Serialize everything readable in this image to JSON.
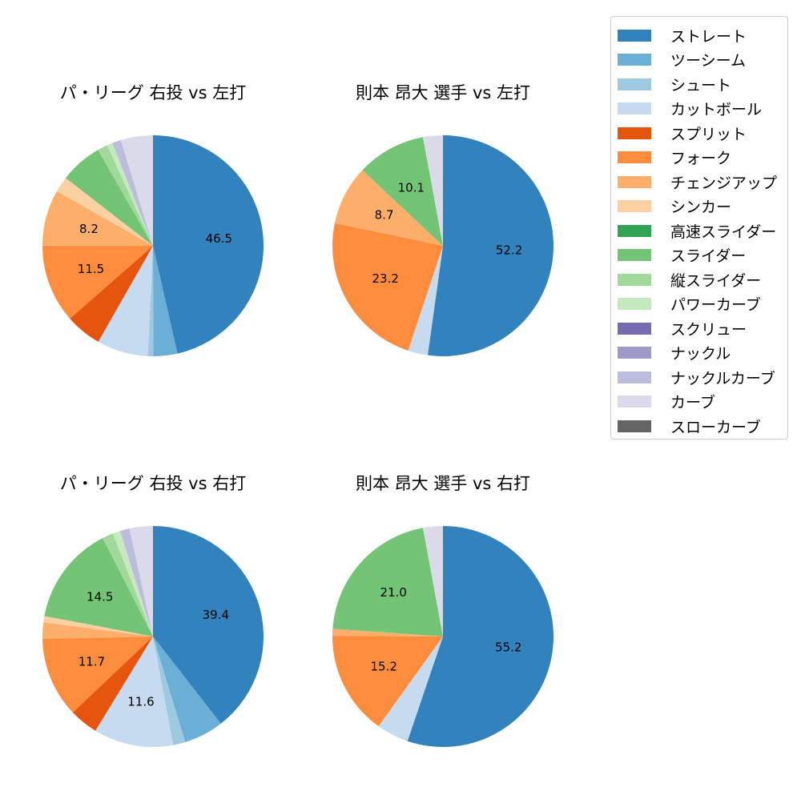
{
  "figure": {
    "legend": {
      "items": [
        {
          "label": "ストレート",
          "color": "#3182bd"
        },
        {
          "label": "ツーシーム",
          "color": "#6baed6"
        },
        {
          "label": "シュート",
          "color": "#9ecae1"
        },
        {
          "label": "カットボール",
          "color": "#c6dbef"
        },
        {
          "label": "スプリット",
          "color": "#e6550d"
        },
        {
          "label": "フォーク",
          "color": "#fd8d3c"
        },
        {
          "label": "チェンジアップ",
          "color": "#fdae6b"
        },
        {
          "label": "シンカー",
          "color": "#fdd0a2"
        },
        {
          "label": "高速スライダー",
          "color": "#31a354"
        },
        {
          "label": "スライダー",
          "color": "#74c476"
        },
        {
          "label": "縦スライダー",
          "color": "#a1d99b"
        },
        {
          "label": "パワーカーブ",
          "color": "#c7e9c0"
        },
        {
          "label": "スクリュー",
          "color": "#756bb1"
        },
        {
          "label": "ナックル",
          "color": "#9e9ac8"
        },
        {
          "label": "ナックルカーブ",
          "color": "#bcbddc"
        },
        {
          "label": "カーブ",
          "color": "#dadaeb"
        },
        {
          "label": "スローカーブ",
          "color": "#636363"
        }
      ]
    }
  },
  "chart_data": [
    {
      "type": "pie",
      "title": "パ・リーグ 右投 vs 左打",
      "label_threshold": 8,
      "categories": [
        "ストレート",
        "ツーシーム",
        "シュート",
        "カットボール",
        "スプリット",
        "フォーク",
        "チェンジアップ",
        "シンカー",
        "高速スライダー",
        "スライダー",
        "縦スライダー",
        "パワーカーブ",
        "スクリュー",
        "ナックル",
        "ナックルカーブ",
        "カーブ",
        "スローカーブ"
      ],
      "values": [
        46.5,
        3.5,
        0.8,
        7.5,
        5.3,
        11.5,
        8.2,
        2.3,
        0,
        6.2,
        1.5,
        0.8,
        0,
        0,
        1.3,
        4.7,
        0
      ],
      "labels_shown": [
        "46.5",
        "11.5",
        "8.2"
      ],
      "start_angle": 90,
      "direction": "clockwise"
    },
    {
      "type": "pie",
      "title": "則本 昂大 選手 vs 左打",
      "label_threshold": 8,
      "categories": [
        "ストレート",
        "ツーシーム",
        "シュート",
        "カットボール",
        "スプリット",
        "フォーク",
        "チェンジアップ",
        "シンカー",
        "高速スライダー",
        "スライダー",
        "縦スライダー",
        "パワーカーブ",
        "スクリュー",
        "ナックル",
        "ナックルカーブ",
        "カーブ",
        "スローカーブ"
      ],
      "values": [
        52.2,
        0,
        0,
        2.9,
        0,
        23.2,
        8.7,
        0,
        0,
        10.1,
        0,
        0,
        0,
        0,
        0,
        2.9,
        0
      ],
      "labels_shown": [
        "52.2",
        "23.2",
        "8.7",
        "10.1"
      ],
      "start_angle": 90,
      "direction": "clockwise"
    },
    {
      "type": "pie",
      "title": "パ・リーグ 右投 vs 右打",
      "label_threshold": 8,
      "categories": [
        "ストレート",
        "ツーシーム",
        "シュート",
        "カットボール",
        "スプリット",
        "フォーク",
        "チェンジアップ",
        "シンカー",
        "高速スライダー",
        "スライダー",
        "縦スライダー",
        "パワーカーブ",
        "スクリュー",
        "ナックル",
        "ナックルカーブ",
        "カーブ",
        "スローカーブ"
      ],
      "values": [
        39.4,
        5.8,
        1.8,
        11.6,
        4.2,
        11.7,
        2.4,
        0.9,
        0,
        14.5,
        1.6,
        1.1,
        0,
        0,
        1.4,
        3.4,
        0
      ],
      "labels_shown": [
        "39.4",
        "11.6",
        "11.7",
        "14.5"
      ],
      "start_angle": 90,
      "direction": "clockwise"
    },
    {
      "type": "pie",
      "title": "則本 昂大 選手 vs 右打",
      "label_threshold": 8,
      "categories": [
        "ストレート",
        "ツーシーム",
        "シュート",
        "カットボール",
        "スプリット",
        "フォーク",
        "チェンジアップ",
        "シンカー",
        "高速スライダー",
        "スライダー",
        "縦スライダー",
        "パワーカーブ",
        "スクリュー",
        "ナックル",
        "ナックルカーブ",
        "カーブ",
        "スローカーブ"
      ],
      "values": [
        55.2,
        0,
        0,
        4.7,
        0,
        15.2,
        1.0,
        0,
        0,
        21.0,
        0,
        0,
        0,
        0,
        0,
        2.9,
        0
      ],
      "labels_shown": [
        "55.2",
        "15.2",
        "21.0"
      ],
      "start_angle": 90,
      "direction": "clockwise"
    }
  ]
}
